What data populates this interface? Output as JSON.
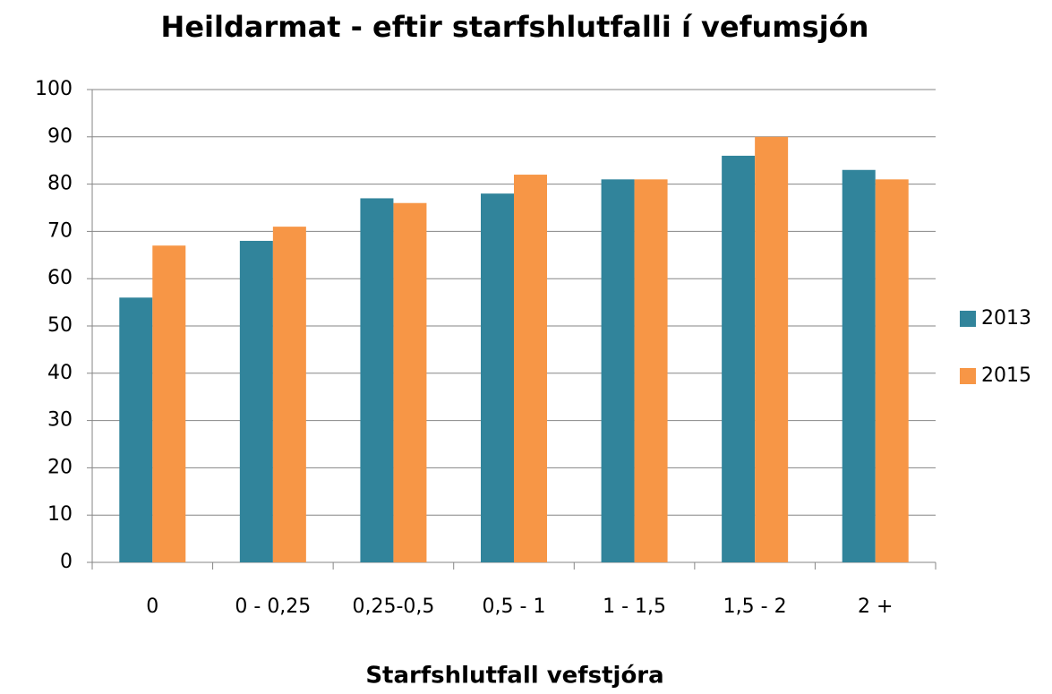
{
  "chart_data": {
    "type": "bar",
    "title": "Heildarmat - eftir starfshlutfalli í vefumsjón",
    "x_label": "Starfshlutfall vefstjóra",
    "categories": [
      "0",
      "0 - 0,25",
      "0,25-0,5",
      "0,5 - 1",
      "1 - 1,5",
      "1,5 - 2",
      "2 +"
    ],
    "series": [
      {
        "name": "2013",
        "color": "#31849b",
        "values": [
          56,
          68,
          77,
          78,
          81,
          86,
          83
        ]
      },
      {
        "name": "2015",
        "color": "#f79646",
        "values": [
          67,
          71,
          76,
          82,
          81,
          90,
          81
        ]
      }
    ],
    "ylim": [
      0,
      100
    ],
    "yticks": [
      0,
      10,
      20,
      30,
      40,
      50,
      60,
      70,
      80,
      90,
      100
    ],
    "grid": true,
    "legend": "right"
  }
}
